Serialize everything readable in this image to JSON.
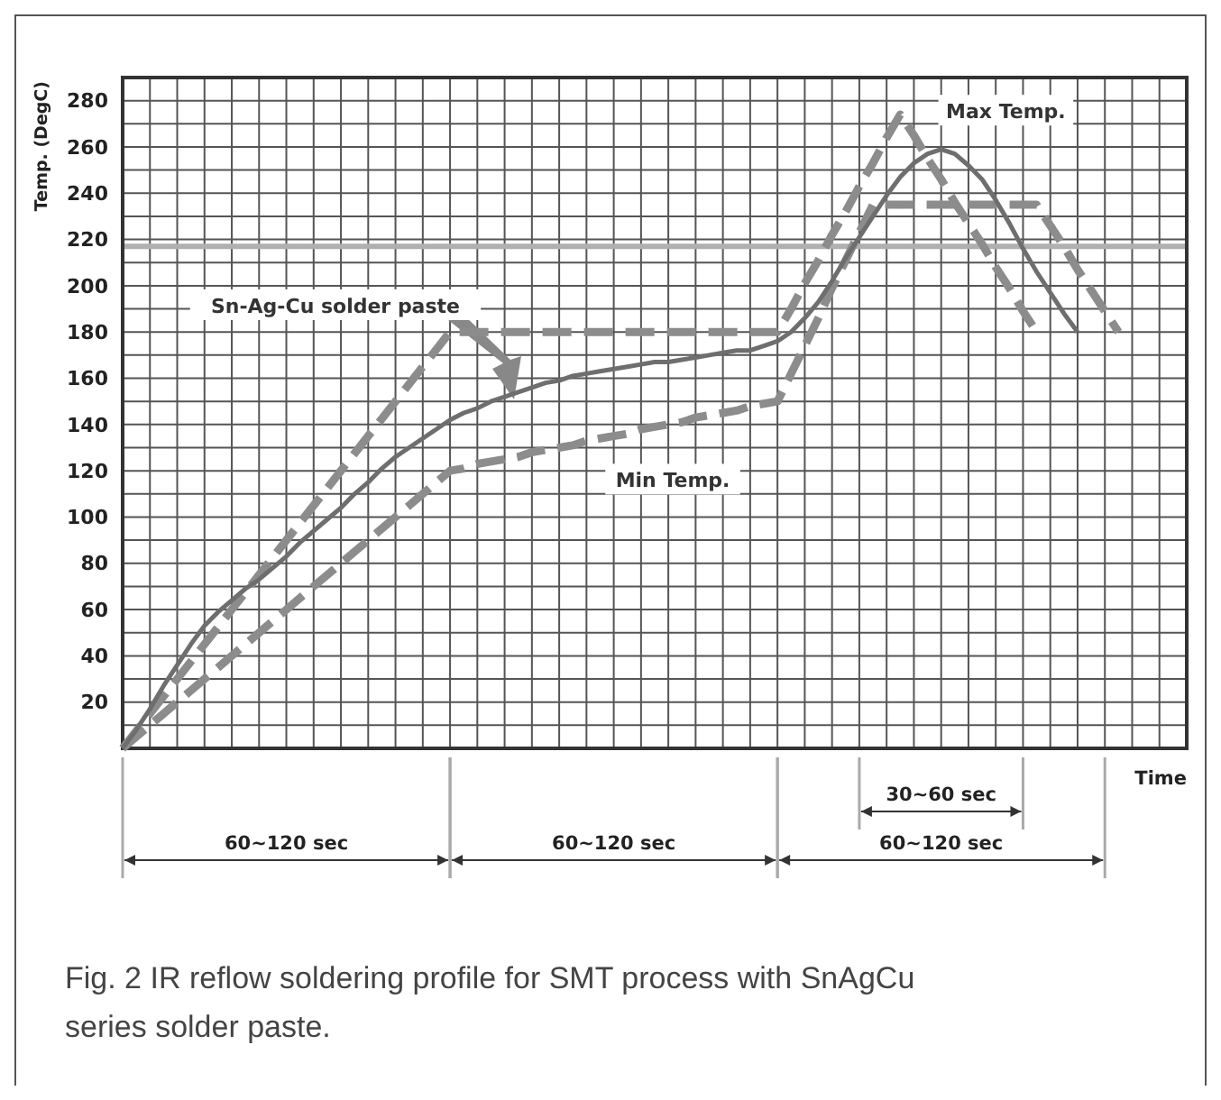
{
  "chart_data": {
    "type": "line",
    "xlabel": "Time",
    "ylabel": "Temp. (DegC)",
    "ylim": [
      0,
      290
    ],
    "categories": [
      null,
      null,
      null,
      null,
      null,
      null,
      null,
      null,
      null,
      null,
      null,
      null,
      null,
      null,
      null,
      null,
      null,
      null,
      null,
      null,
      null,
      null,
      null,
      null,
      null,
      null,
      null,
      null,
      null,
      null,
      null,
      null,
      null,
      null,
      null,
      null,
      null,
      null,
      null,
      null,
      null,
      null,
      null,
      null,
      null,
      null,
      null,
      null,
      null,
      null,
      null,
      null,
      null,
      null,
      null,
      null,
      null,
      null,
      null,
      null,
      null,
      null,
      null,
      null,
      null,
      null,
      null,
      null,
      null,
      null,
      null,
      null,
      null,
      null,
      null,
      null,
      null,
      null,
      null
    ],
    "yticks": [
      {
        "value": 0,
        "label": null
      },
      {
        "value": 10,
        "label": null
      },
      20,
      {
        "value": 30,
        "label": null
      },
      40,
      {
        "value": 50,
        "label": null
      },
      60,
      {
        "value": 70,
        "label": null
      },
      80,
      {
        "value": 90,
        "label": null
      },
      100,
      {
        "value": 110,
        "label": null
      },
      120,
      {
        "value": 130,
        "label": null
      },
      140,
      {
        "value": 150,
        "label": null
      },
      160,
      {
        "value": 170,
        "label": null
      },
      180,
      {
        "value": 190,
        "label": null
      },
      200,
      {
        "value": 210,
        "label": null
      },
      220,
      {
        "value": 230,
        "label": null
      },
      240,
      {
        "value": 250,
        "label": null
      },
      260,
      {
        "value": 270,
        "label": null
      },
      280,
      {
        "value": 290,
        "label": null
      }
    ],
    "tick_labels": "y",
    "grid": true,
    "series": [
      {
        "color": "#8c8c8c",
        "line_style": "dashed",
        "values": [
          0,
          7.5,
          15,
          22.5,
          30,
          37.5,
          45,
          52.5,
          60,
          67.5,
          75,
          82.5,
          90,
          97.5,
          105,
          112.5,
          120,
          127.5,
          135,
          142.5,
          150,
          157.5,
          165,
          172.5,
          180,
          180,
          180,
          180,
          180,
          180,
          180,
          180,
          180,
          180,
          180,
          180,
          180,
          180,
          180,
          180,
          180,
          180,
          180,
          180,
          180,
          180,
          180,
          180,
          180,
          190,
          201,
          211,
          222,
          232,
          243,
          253,
          264,
          274,
          265,
          255,
          246,
          236,
          227,
          218,
          208,
          199,
          189,
          180,
          null,
          null,
          null,
          null,
          null,
          null,
          null,
          null,
          null,
          null,
          null
        ]
      },
      {
        "color": "#8c8c8c",
        "line_style": "dashed",
        "values": [
          0,
          5,
          10,
          15,
          20,
          25,
          30,
          35,
          40,
          45,
          50,
          55,
          60,
          65,
          70,
          75,
          80,
          85,
          90,
          95,
          100,
          105,
          110,
          115,
          120,
          121,
          123,
          124,
          125,
          126,
          128,
          129,
          130,
          131,
          133,
          134,
          135,
          136,
          138,
          139,
          140,
          141,
          143,
          144,
          145,
          146,
          148,
          149,
          150,
          162,
          174,
          186,
          199,
          211,
          223,
          235,
          235,
          235,
          235,
          235,
          235,
          235,
          235,
          235,
          235,
          235,
          235,
          235,
          226,
          217,
          207,
          198,
          189,
          180,
          null,
          null,
          null,
          null,
          null
        ]
      },
      {
        "color": "#6e6e6e",
        "line_style": "solid",
        "values": [
          0,
          8,
          17,
          27,
          36,
          45,
          53,
          59,
          64,
          69,
          73,
          78,
          83,
          89,
          94,
          99,
          104,
          110,
          115,
          121,
          126,
          130,
          134,
          138,
          142,
          145,
          147,
          150,
          152,
          154,
          156,
          158,
          159,
          161,
          162,
          163,
          164,
          165,
          166,
          167,
          167,
          168,
          169,
          170,
          171,
          172,
          172,
          174,
          176,
          180,
          186,
          193,
          202,
          212,
          221,
          230,
          239,
          247,
          253,
          257,
          259,
          257,
          252,
          246,
          237,
          227,
          216,
          206,
          197,
          188,
          180,
          null,
          null,
          null,
          null,
          null,
          null,
          null,
          null
        ]
      }
    ],
    "ref_lines": [
      {
        "axis": "y",
        "value": 217,
        "color": "#b0b0b0"
      }
    ],
    "annotations": [
      "Sn-Ag-Cu solder paste",
      "Max Temp.",
      "Min Temp.",
      "60~120 sec",
      "60~120 sec",
      "60~120 sec",
      "30~60 sec",
      "Fig. 2  IR reflow soldering profile for SMT process with SnAgCu series solder paste."
    ]
  }
}
